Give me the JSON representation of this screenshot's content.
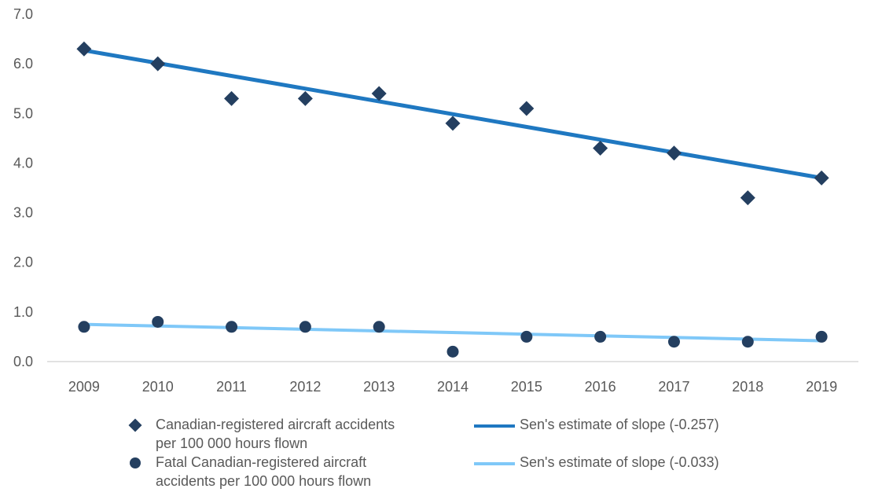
{
  "chart_data": {
    "type": "scatter",
    "title": "",
    "xlabel": "",
    "ylabel": "",
    "categories": [
      "2009",
      "2010",
      "2011",
      "2012",
      "2013",
      "2014",
      "2015",
      "2016",
      "2017",
      "2018",
      "2019"
    ],
    "ylim": [
      0,
      7
    ],
    "yticks": [
      "0.0",
      "1.0",
      "2.0",
      "3.0",
      "4.0",
      "5.0",
      "6.0",
      "7.0"
    ],
    "grid": false,
    "legend_position": "bottom",
    "series": [
      {
        "name": "Canadian-registered aircraft accidents per 100 000 hours flown",
        "legend_lines": [
          "Canadian-registered aircraft accidents",
          "per 100 000 hours flown"
        ],
        "marker": "diamond",
        "color": "#243f60",
        "values": [
          6.3,
          6.0,
          5.3,
          5.3,
          5.4,
          4.8,
          5.1,
          4.3,
          4.2,
          3.3,
          3.7
        ]
      },
      {
        "name": "Fatal Canadian-registered aircraft accidents per 100 000 hours flown",
        "legend_lines": [
          "Fatal Canadian-registered aircraft",
          "accidents per 100 000 hours flown"
        ],
        "marker": "circle",
        "color": "#243f60",
        "values": [
          0.7,
          0.8,
          0.7,
          0.7,
          0.7,
          0.2,
          0.5,
          0.5,
          0.4,
          0.4,
          0.5
        ]
      }
    ],
    "trendlines": [
      {
        "name": "Sen's estimate of slope (-0.257)",
        "color": "#1f78c1",
        "start": 6.27,
        "end": 3.7
      },
      {
        "name": "Sen's estimate of slope (-0.033)",
        "color": "#7fc8f8",
        "start": 0.75,
        "end": 0.42
      }
    ]
  }
}
